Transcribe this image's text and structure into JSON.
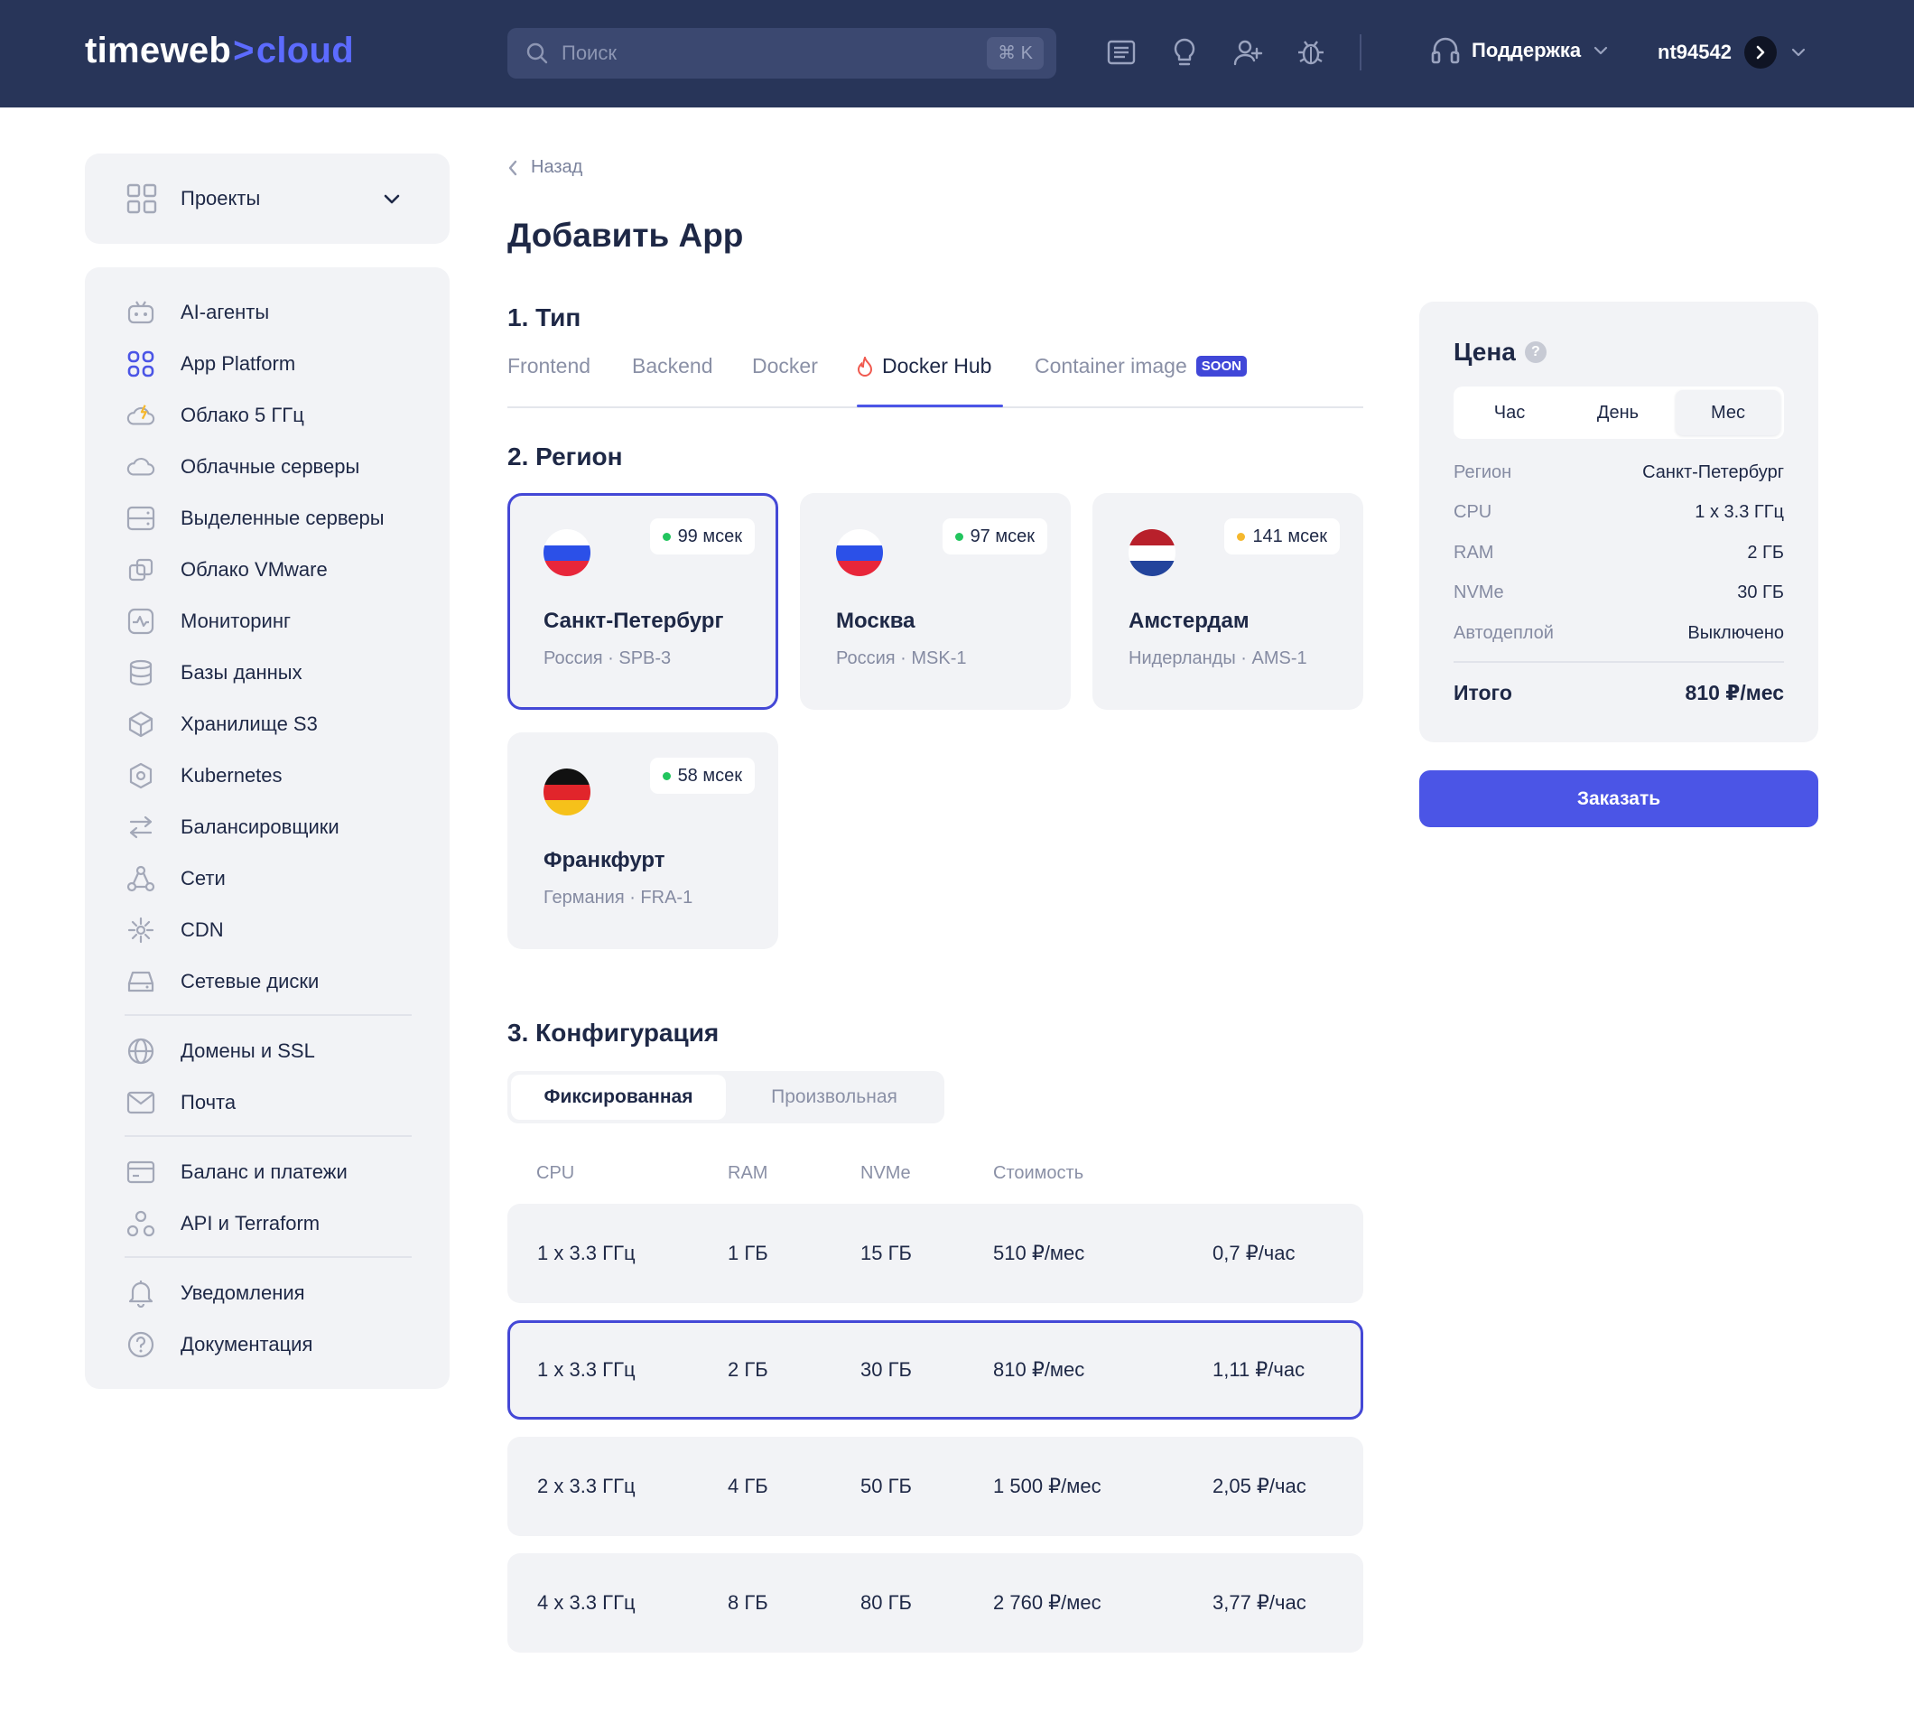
{
  "header": {
    "logo_part1": "timeweb",
    "logo_chevron": ">",
    "logo_part2": "cloud",
    "search_placeholder": "Поиск",
    "search_shortcut": "⌘ K",
    "support_label": "Поддержка",
    "username": "nt94542",
    "icons": [
      "news-icon",
      "lightbulb-icon",
      "add-user-icon",
      "bug-icon",
      "headset-icon"
    ]
  },
  "sidebar": {
    "projects_label": "Проекты",
    "items": [
      {
        "label": "AI-агенты",
        "icon": "robot-icon"
      },
      {
        "label": "App Platform",
        "icon": "apps-grid-icon"
      },
      {
        "label": "Облако 5 ГГц",
        "icon": "cloud-bolt-icon"
      },
      {
        "label": "Облачные серверы",
        "icon": "cloud-icon"
      },
      {
        "label": "Выделенные серверы",
        "icon": "server-icon"
      },
      {
        "label": "Облако VMware",
        "icon": "vmware-icon"
      },
      {
        "label": "Мониторинг",
        "icon": "monitoring-icon"
      },
      {
        "label": "Базы данных",
        "icon": "database-icon"
      },
      {
        "label": "Хранилище S3",
        "icon": "cube-icon"
      },
      {
        "label": "Kubernetes",
        "icon": "kubernetes-icon"
      },
      {
        "label": "Балансировщики",
        "icon": "arrows-icon"
      },
      {
        "label": "Сети",
        "icon": "network-icon"
      },
      {
        "label": "CDN",
        "icon": "cdn-icon"
      },
      {
        "label": "Сетевые диски",
        "icon": "disk-icon"
      },
      {
        "label": "Домены и SSL",
        "icon": "globe-icon"
      },
      {
        "label": "Почта",
        "icon": "mail-icon"
      },
      {
        "label": "Баланс и платежи",
        "icon": "card-icon"
      },
      {
        "label": "API и Terraform",
        "icon": "api-icon"
      },
      {
        "label": "Уведомления",
        "icon": "bell-icon"
      },
      {
        "label": "Документация",
        "icon": "help-icon"
      }
    ]
  },
  "main": {
    "back_label": "Назад",
    "title": "Добавить App",
    "section_type": "1. Тип",
    "section_region": "2. Регион",
    "section_config": "3. Конфигурация",
    "tabs": [
      {
        "label": "Frontend"
      },
      {
        "label": "Backend"
      },
      {
        "label": "Docker"
      },
      {
        "label": "Docker Hub",
        "active": true
      },
      {
        "label": "Container image",
        "badge": "SOON"
      }
    ],
    "regions": [
      {
        "name": "Санкт-Петербург",
        "sub": "Россия · SPB-3",
        "ping": "99 мсек",
        "ping_color": "#22c55e",
        "flag": "russia",
        "selected": true
      },
      {
        "name": "Москва",
        "sub": "Россия · MSK-1",
        "ping": "97 мсек",
        "ping_color": "#22c55e",
        "flag": "russia"
      },
      {
        "name": "Амстердам",
        "sub": "Нидерланды · AMS-1",
        "ping": "141 мсек",
        "ping_color": "#f5b82e",
        "flag": "netherlands"
      },
      {
        "name": "Франкфурт",
        "sub": "Германия · FRA-1",
        "ping": "58 мсек",
        "ping_color": "#22c55e",
        "flag": "germany"
      }
    ],
    "config_tabs": [
      "Фиксированная",
      "Произвольная"
    ],
    "table_headers": [
      "CPU",
      "RAM",
      "NVMe",
      "Стоимость"
    ],
    "rows": [
      {
        "cpu": "1 x 3.3 ГГц",
        "ram": "1 ГБ",
        "nvme": "15 ГБ",
        "month": "510 ₽/мес",
        "hour": "0,7 ₽/час"
      },
      {
        "cpu": "1 x 3.3 ГГц",
        "ram": "2 ГБ",
        "nvme": "30 ГБ",
        "month": "810 ₽/мес",
        "hour": "1,11 ₽/час",
        "selected": true
      },
      {
        "cpu": "2 x 3.3 ГГц",
        "ram": "4 ГБ",
        "nvme": "50 ГБ",
        "month": "1 500 ₽/мес",
        "hour": "2,05 ₽/час"
      },
      {
        "cpu": "4 x 3.3 ГГц",
        "ram": "8 ГБ",
        "nvme": "80 ГБ",
        "month": "2 760 ₽/мес",
        "hour": "3,77 ₽/час"
      }
    ]
  },
  "price": {
    "title": "Цена",
    "help": "?",
    "periods": [
      "Час",
      "День",
      "Мес"
    ],
    "active_period": "Мес",
    "rows": [
      {
        "key": "Регион",
        "value": "Санкт-Петербург"
      },
      {
        "key": "CPU",
        "value": "1 x 3.3 ГГц"
      },
      {
        "key": "RAM",
        "value": "2 ГБ"
      },
      {
        "key": "NVMe",
        "value": "30 ГБ"
      },
      {
        "key": "Автодеплой",
        "value": "Выключено"
      }
    ],
    "total_label": "Итого",
    "total_value": "810 ₽/мес",
    "order_button": "Заказать"
  },
  "colors": {
    "header_bg": "#283559",
    "accent": "#4b55e6",
    "panel_bg": "#f2f3f6"
  }
}
